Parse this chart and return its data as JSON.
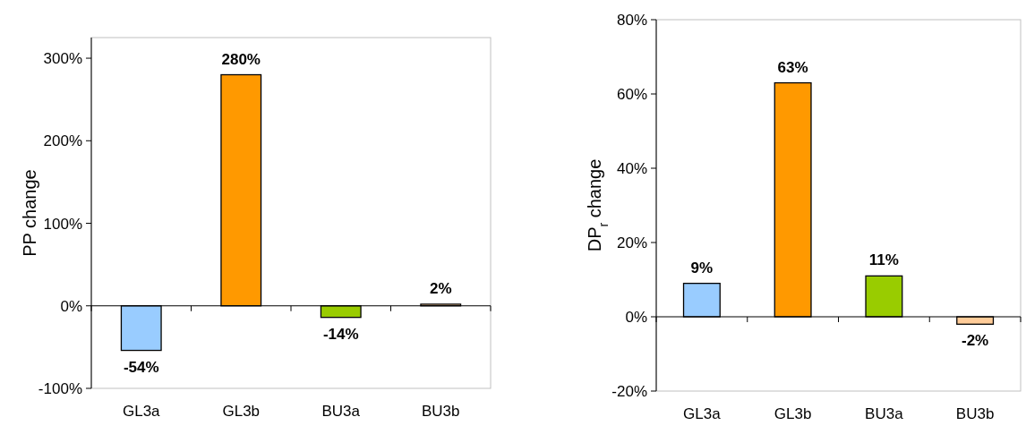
{
  "chart_data": [
    {
      "type": "bar",
      "ylabel": "PP change",
      "categories": [
        "GL3a",
        "GL3b",
        "BU3a",
        "BU3b"
      ],
      "values": [
        -54,
        280,
        -14,
        2
      ],
      "colors": [
        "#99ccff",
        "#ff9900",
        "#99cc00",
        "#ffcc99"
      ],
      "value_labels": [
        "-54%",
        "280%",
        "-14%",
        "2%"
      ],
      "ylim": [
        -100,
        325
      ],
      "yticks": [
        {
          "value": -100,
          "label": "-100%"
        },
        {
          "value": 0,
          "label": "0%"
        },
        {
          "value": 100,
          "label": "100%"
        },
        {
          "value": 200,
          "label": "200%"
        },
        {
          "value": 300,
          "label": "300%"
        }
      ]
    },
    {
      "type": "bar",
      "ylabel": "DP$_{r}$ change",
      "categories": [
        "GL3a",
        "GL3b",
        "BU3a",
        "BU3b"
      ],
      "values": [
        9,
        63,
        11,
        -2
      ],
      "colors": [
        "#99ccff",
        "#ff9900",
        "#99cc00",
        "#ffcc99"
      ],
      "value_labels": [
        "9%",
        "63%",
        "11%",
        "-2%"
      ],
      "ylim": [
        -20,
        80
      ],
      "yticks": [
        {
          "value": -20,
          "label": "-20%"
        },
        {
          "value": 0,
          "label": "0%"
        },
        {
          "value": 20,
          "label": "20%"
        },
        {
          "value": 40,
          "label": "40%"
        },
        {
          "value": 60,
          "label": "60%"
        },
        {
          "value": 80,
          "label": "80%"
        }
      ]
    }
  ]
}
